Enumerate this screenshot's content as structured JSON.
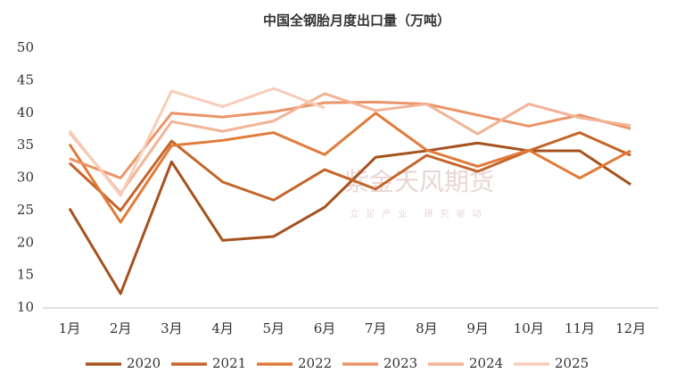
{
  "chart_data": {
    "type": "line",
    "title": "中国全钢胎月度出口量（万吨）",
    "watermark": "紫金天风期货",
    "watermark_sub": "立足产业 研究驱动",
    "categories": [
      "1月",
      "2月",
      "3月",
      "4月",
      "5月",
      "6月",
      "7月",
      "8月",
      "9月",
      "10月",
      "11月",
      "12月"
    ],
    "series": [
      {
        "name": "2020",
        "color": "#a5521e",
        "values": [
          25.3,
          12.2,
          32.5,
          20.4,
          21,
          25.5,
          33.2,
          34.2,
          35.4,
          34.2,
          34.2,
          29
        ]
      },
      {
        "name": "2021",
        "color": "#c4652b",
        "values": [
          32.3,
          25,
          35.7,
          29.4,
          26.6,
          31.3,
          28.3,
          33.5,
          31,
          34.2,
          37,
          33.5
        ]
      },
      {
        "name": "2022",
        "color": "#e07b39",
        "values": [
          35.2,
          23.2,
          35,
          35.8,
          37,
          33.6,
          40,
          34.3,
          31.8,
          34.3,
          30,
          34.2
        ]
      },
      {
        "name": "2023",
        "color": "#eb9468",
        "values": [
          33,
          30,
          40,
          39.4,
          40.2,
          41.6,
          41.7,
          41.4,
          39.7,
          38,
          39.7,
          37.6
        ]
      },
      {
        "name": "2024",
        "color": "#f2b496",
        "values": [
          37,
          27.6,
          38.7,
          37.2,
          38.8,
          43,
          40.4,
          41.4,
          36.8,
          41.4,
          39.3,
          38.1
        ]
      },
      {
        "name": "2025",
        "color": "#f7cdb8",
        "values": [
          37.3,
          27.3,
          43.4,
          41,
          43.8,
          40.8,
          null,
          null,
          null,
          null,
          null,
          null
        ]
      }
    ],
    "ylim": [
      10,
      50
    ],
    "yticks": [
      10,
      15,
      20,
      25,
      30,
      35,
      40,
      45,
      50
    ],
    "grid": false,
    "legend": "bottom"
  }
}
